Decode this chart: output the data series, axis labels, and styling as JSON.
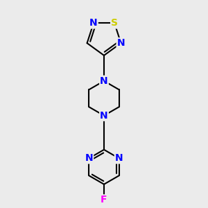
{
  "background_color": "#ebebeb",
  "bond_color": "#000000",
  "bond_width": 1.5,
  "atom_colors": {
    "N": "#0000ff",
    "S": "#cccc00",
    "F": "#ff00ff",
    "C": "#000000"
  },
  "font_size": 10,
  "fig_size": [
    3.0,
    3.0
  ],
  "dpi": 100,
  "xlim": [
    0.2,
    0.8
  ],
  "ylim": [
    0.05,
    0.95
  ]
}
